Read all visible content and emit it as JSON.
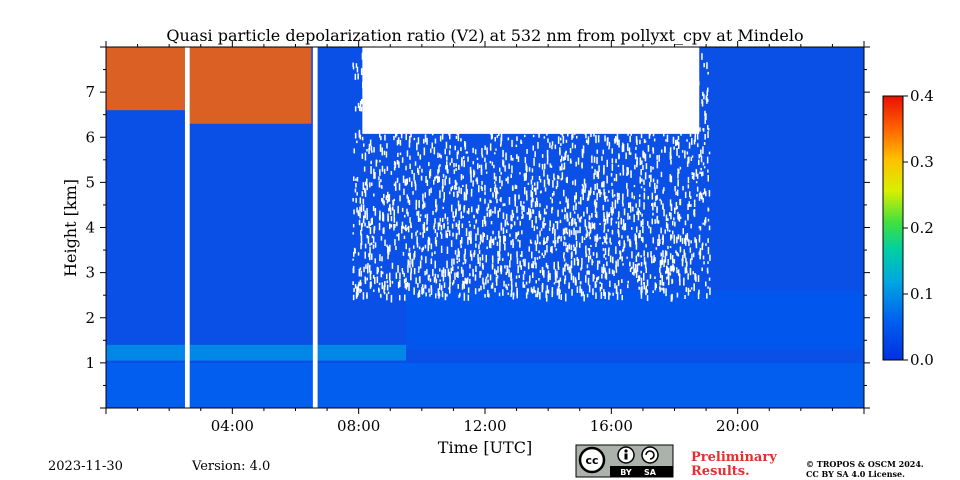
{
  "chart_data": {
    "type": "heatmap",
    "title": "Quasi particle depolarization ratio (V2) at 532 nm from pollyxt_cpv at Mindelo",
    "xlabel": "Time [UTC]",
    "ylabel": "Height [km]",
    "xlim_hours": [
      0,
      24
    ],
    "ylim_km": [
      0,
      8
    ],
    "x_ticks": [
      "04:00",
      "08:00",
      "12:00",
      "16:00",
      "20:00"
    ],
    "x_tick_hours": [
      4,
      8,
      12,
      16,
      20
    ],
    "y_ticks": [
      "1",
      "2",
      "3",
      "4",
      "5",
      "6",
      "7"
    ],
    "y_tick_values": [
      1,
      2,
      3,
      4,
      5,
      6,
      7
    ],
    "colorbar": {
      "min": 0.0,
      "max": 0.4,
      "ticks": [
        "0.0",
        "0.1",
        "0.2",
        "0.3",
        "0.4"
      ],
      "tick_values": [
        0.0,
        0.1,
        0.2,
        0.3,
        0.4
      ],
      "colormap": "jet"
    },
    "background_value": 0.02,
    "data_gaps_hours": [
      [
        2.5,
        2.65
      ],
      [
        6.55,
        6.7
      ]
    ],
    "layers": [
      {
        "t_start": 0,
        "t_end": 9.5,
        "bottom_km": 1.05,
        "top_km": 1.4,
        "value": 0.1
      },
      {
        "t_start": 0,
        "t_end": 24,
        "bottom_km": 0.0,
        "top_km": 1.0,
        "value": 0.06
      },
      {
        "t_start": 9.5,
        "t_end": 24,
        "bottom_km": 1.3,
        "top_km": 2.6,
        "value": 0.05
      },
      {
        "t_start": 0,
        "t_end": 2.5,
        "bottom_km": 6.6,
        "top_km": 8.0,
        "value": 0.35
      },
      {
        "t_start": 2.65,
        "t_end": 6.5,
        "bottom_km": 6.3,
        "top_km": 8.0,
        "value": 0.35
      }
    ],
    "noise_region": {
      "t_start": 7.8,
      "t_end": 19.1,
      "bottom_km": 2.5,
      "top_km": 8.0
    }
  },
  "footer": {
    "date": "2023-11-30",
    "version": "Version: 4.0",
    "preliminary_line1": "Preliminary",
    "preliminary_line2": "Results.",
    "copyright_line1": "© TROPOS & OSCM 2024.",
    "copyright_line2": "CC BY SA 4.0 License."
  },
  "license_badge": {
    "left": "cc",
    "by": "BY",
    "sa": "SA"
  }
}
